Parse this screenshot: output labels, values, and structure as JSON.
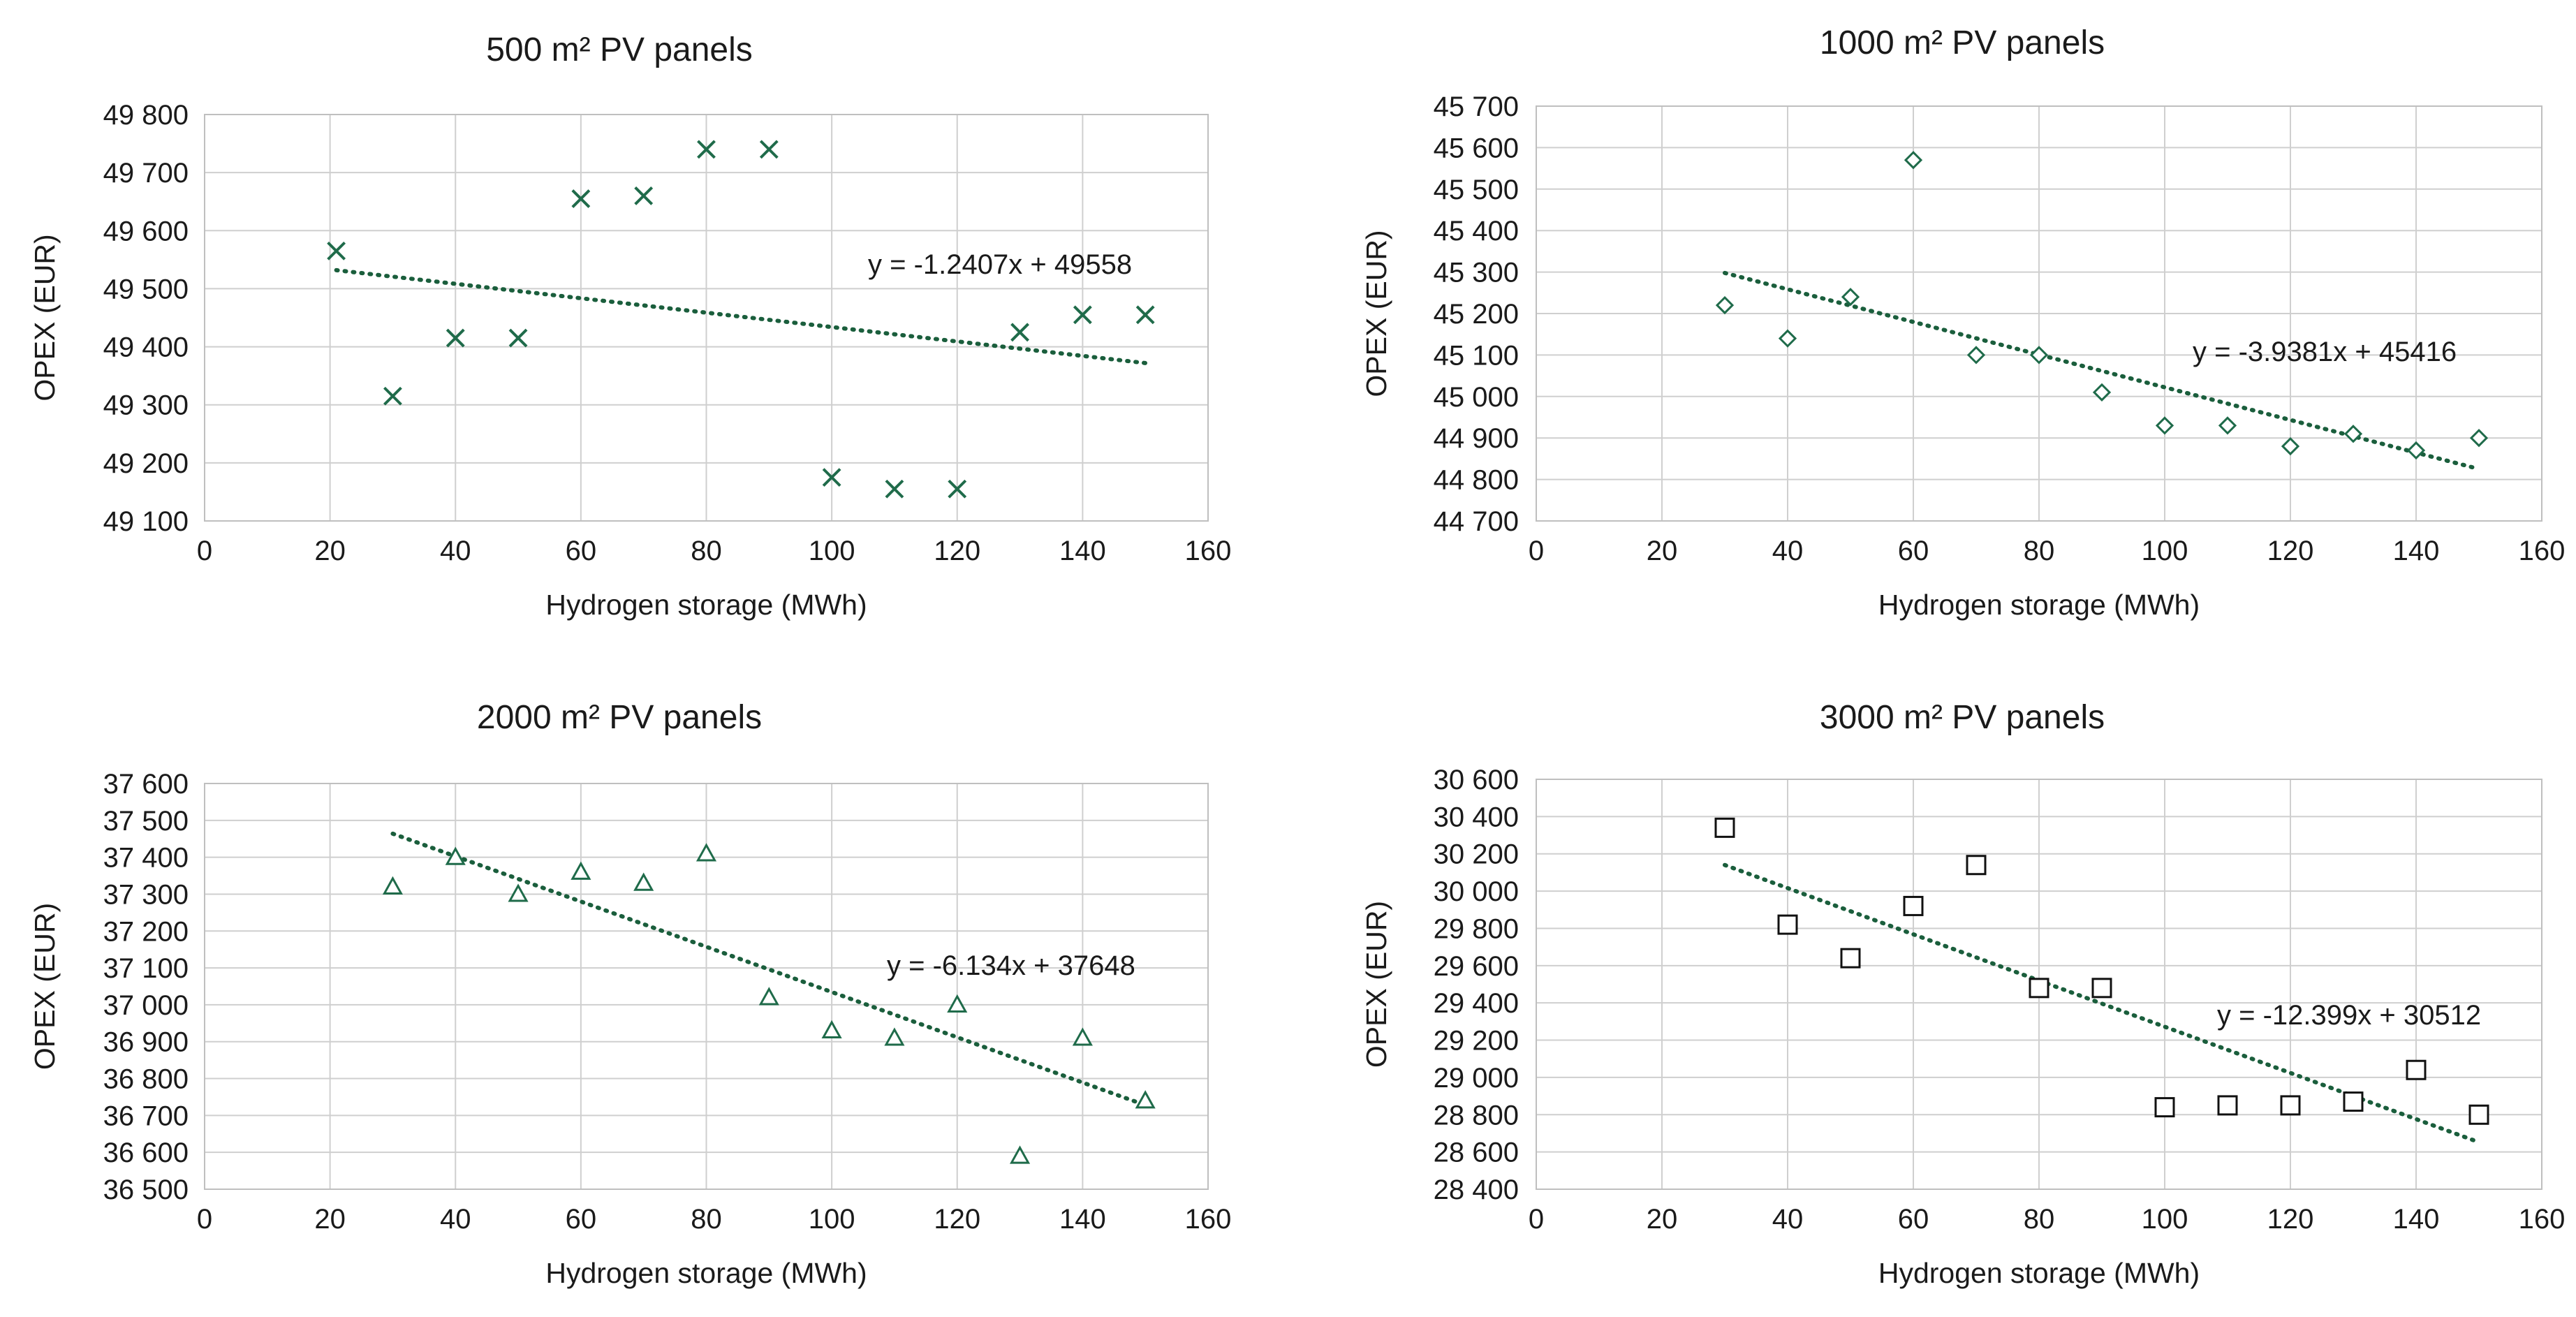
{
  "colors": {
    "marker": "#1f6b4a",
    "trend": "#1a5e3c"
  },
  "chart_data": [
    {
      "type": "scatter",
      "title": "500 m² PV panels",
      "xlabel": "Hydrogen storage (MWh)",
      "ylabel": "OPEX (EUR)",
      "xlim": [
        0,
        160
      ],
      "ylim": [
        49100,
        49800
      ],
      "x_ticks": [
        0,
        20,
        40,
        60,
        80,
        100,
        120,
        140,
        160
      ],
      "x_tick_labels": [
        "0",
        "20",
        "40",
        "60",
        "80",
        "100",
        "120",
        "140",
        "160"
      ],
      "y_ticks": [
        49100,
        49200,
        49300,
        49400,
        49500,
        49600,
        49700,
        49800
      ],
      "y_tick_labels": [
        "49 100",
        "49 200",
        "49 300",
        "49 400",
        "49 500",
        "49 600",
        "49 700",
        "49 800"
      ],
      "marker": "x",
      "series": [
        {
          "name": "OPEX",
          "x": [
            21,
            30,
            40,
            50,
            60,
            70,
            80,
            90,
            100,
            110,
            120,
            130,
            140,
            150
          ],
          "y": [
            49565,
            49315,
            49415,
            49415,
            49655,
            49660,
            49740,
            49740,
            49175,
            49155,
            49155,
            49425,
            49455,
            49455
          ]
        }
      ],
      "trendline": {
        "slope": -1.2407,
        "intercept": 49558,
        "x_range": [
          21,
          150
        ],
        "equation": "y = -1.2407x + 49558"
      }
    },
    {
      "type": "scatter",
      "title": "1000 m² PV panels",
      "xlabel": "Hydrogen storage (MWh)",
      "ylabel": "OPEX (EUR)",
      "xlim": [
        0,
        160
      ],
      "ylim": [
        44700,
        45700
      ],
      "x_ticks": [
        0,
        20,
        40,
        60,
        80,
        100,
        120,
        140,
        160
      ],
      "x_tick_labels": [
        "0",
        "20",
        "40",
        "60",
        "80",
        "100",
        "120",
        "140",
        "160"
      ],
      "y_ticks": [
        44700,
        44800,
        44900,
        45000,
        45100,
        45200,
        45300,
        45400,
        45500,
        45600,
        45700
      ],
      "y_tick_labels": [
        "44 700",
        "44 800",
        "44 900",
        "45 000",
        "45 100",
        "45 200",
        "45 300",
        "45 400",
        "45 500",
        "45 600",
        "45 700"
      ],
      "marker": "diamond",
      "series": [
        {
          "name": "OPEX",
          "x": [
            30,
            40,
            50,
            60,
            70,
            80,
            90,
            100,
            110,
            120,
            130,
            140,
            150
          ],
          "y": [
            45220,
            45140,
            45240,
            45570,
            45100,
            45100,
            45010,
            44930,
            44930,
            44880,
            44910,
            44870,
            44900
          ]
        }
      ],
      "trendline": {
        "slope": -3.9381,
        "intercept": 45416,
        "x_range": [
          30,
          150
        ],
        "equation": "y = -3.9381x + 45416"
      }
    },
    {
      "type": "scatter",
      "title": "2000 m² PV panels",
      "xlabel": "Hydrogen storage (MWh)",
      "ylabel": "OPEX (EUR)",
      "xlim": [
        0,
        160
      ],
      "ylim": [
        36500,
        37600
      ],
      "x_ticks": [
        0,
        20,
        40,
        60,
        80,
        100,
        120,
        140,
        160
      ],
      "x_tick_labels": [
        "0",
        "20",
        "40",
        "60",
        "80",
        "100",
        "120",
        "140",
        "160"
      ],
      "y_ticks": [
        36500,
        36600,
        36700,
        36800,
        36900,
        37000,
        37100,
        37200,
        37300,
        37400,
        37500,
        37600
      ],
      "y_tick_labels": [
        "36 500",
        "36 600",
        "36 700",
        "36 800",
        "36 900",
        "37 000",
        "37 100",
        "37 200",
        "37 300",
        "37 400",
        "37 500",
        "37 600"
      ],
      "marker": "triangle",
      "series": [
        {
          "name": "OPEX",
          "x": [
            30,
            40,
            50,
            60,
            70,
            80,
            90,
            100,
            110,
            120,
            130,
            140,
            150
          ],
          "y": [
            37320,
            37400,
            37300,
            37360,
            37330,
            37410,
            37020,
            36930,
            36910,
            37000,
            36590,
            36910,
            36740
          ]
        }
      ],
      "trendline": {
        "slope": -6.134,
        "intercept": 37648,
        "x_range": [
          30,
          150
        ],
        "equation": "y = -6.134x + 37648"
      }
    },
    {
      "type": "scatter",
      "title": "3000 m² PV panels",
      "xlabel": "Hydrogen storage (MWh)",
      "ylabel": "OPEX (EUR)",
      "xlim": [
        0,
        160
      ],
      "ylim": [
        28400,
        30600
      ],
      "x_ticks": [
        0,
        20,
        40,
        60,
        80,
        100,
        120,
        140,
        160
      ],
      "x_tick_labels": [
        "0",
        "20",
        "40",
        "60",
        "80",
        "100",
        "120",
        "140",
        "160"
      ],
      "y_ticks": [
        28400,
        28600,
        28800,
        29000,
        29200,
        29400,
        29600,
        29800,
        30000,
        30200,
        30400,
        30600
      ],
      "y_tick_labels": [
        "28 400",
        "28 600",
        "28 800",
        "29 000",
        "29 200",
        "29 400",
        "29 600",
        "29 800",
        "30 000",
        "30 200",
        "30 400",
        "30 600"
      ],
      "marker": "square",
      "series": [
        {
          "name": "OPEX",
          "x": [
            30,
            40,
            50,
            60,
            70,
            80,
            90,
            100,
            110,
            120,
            130,
            140,
            150
          ],
          "y": [
            30340,
            29820,
            29640,
            29920,
            30140,
            29480,
            29480,
            28840,
            28850,
            28850,
            28870,
            29040,
            28800
          ]
        }
      ],
      "trendline": {
        "slope": -12.399,
        "intercept": 30512,
        "x_range": [
          30,
          150
        ],
        "equation": "y = -12.399x + 30512"
      }
    }
  ]
}
